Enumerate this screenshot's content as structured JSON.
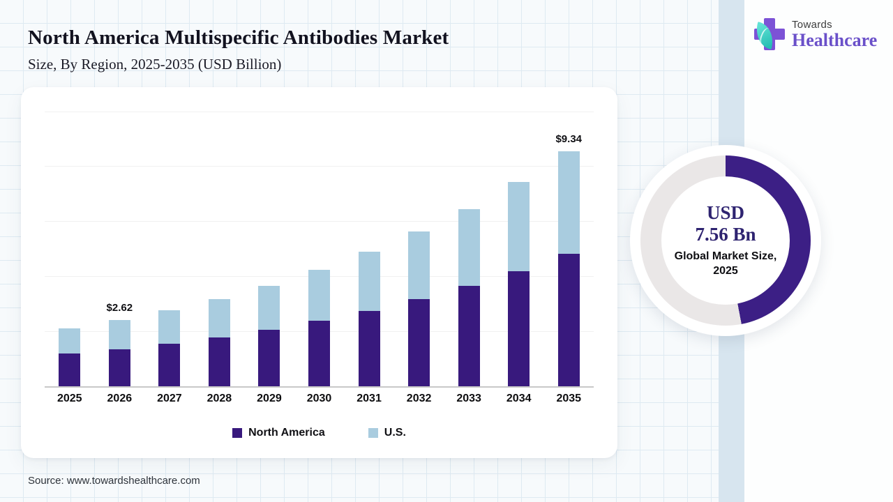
{
  "header": {
    "title": "North America Multispecific Antibodies Market",
    "subtitle": "Size, By Region, 2025-2035 (USD Billion)"
  },
  "brand": {
    "name_top": "Towards",
    "name_bottom": "Healthcare"
  },
  "chart_data": {
    "type": "bar",
    "stacked": true,
    "title": "North America Multispecific Antibodies Market Size, By Region, 2025-2035 (USD Billion)",
    "categories": [
      "2025",
      "2026",
      "2027",
      "2028",
      "2029",
      "2030",
      "2031",
      "2032",
      "2033",
      "2034",
      "2035"
    ],
    "series": [
      {
        "name": "North America",
        "color": "#38197d",
        "values": [
          1.3,
          1.48,
          1.69,
          1.94,
          2.24,
          2.61,
          3.0,
          3.47,
          3.99,
          4.57,
          5.27
        ]
      },
      {
        "name": "U.S.",
        "color": "#a9ccdf",
        "values": [
          1.0,
          1.14,
          1.34,
          1.52,
          1.75,
          2.02,
          2.35,
          2.68,
          3.05,
          3.55,
          4.07
        ]
      }
    ],
    "totals": [
      2.3,
      2.62,
      3.03,
      3.46,
      3.99,
      4.63,
      5.35,
      6.15,
      7.04,
      8.12,
      9.34
    ],
    "annotations": [
      {
        "category": "2026",
        "text": "$2.62"
      },
      {
        "category": "2035",
        "text": "$9.34"
      }
    ],
    "xlabel": "",
    "ylabel": "",
    "ylim": [
      0,
      11.5
    ],
    "grid": true,
    "legend_position": "bottom"
  },
  "donut": {
    "fraction": 0.47,
    "arc_color": "#3c1f85",
    "track_color": "#eae7e7",
    "value_line1": "USD",
    "value_line2": "7.56 Bn",
    "caption_line1": "Global Market Size,",
    "caption_line2": "2025"
  },
  "footer": {
    "source": "Source: www.towardshealthcare.com"
  }
}
